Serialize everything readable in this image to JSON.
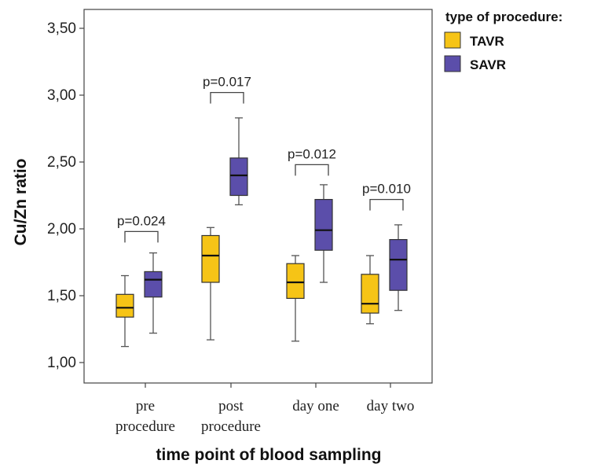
{
  "chart_data": {
    "type": "boxplot",
    "ylabel": "Cu/Zn ratio",
    "xlabel": "time point of blood sampling",
    "ylim": [
      0.9,
      3.65
    ],
    "yticks": [
      "1,00",
      "1,50",
      "2,00",
      "2,50",
      "3,00",
      "3,50"
    ],
    "ytick_values": [
      1.0,
      1.5,
      2.0,
      2.5,
      3.0,
      3.5
    ],
    "categories": [
      [
        "pre",
        "procedure"
      ],
      [
        "post",
        "procedure"
      ],
      [
        "day one"
      ],
      [
        "day two"
      ]
    ],
    "legend": {
      "title": "type of procedure:",
      "position": "top-right"
    },
    "series": [
      {
        "name": "TAVR",
        "color": "#f6c416",
        "boxes": [
          {
            "min": 1.12,
            "q1": 1.34,
            "median": 1.41,
            "q3": 1.51,
            "max": 1.65
          },
          {
            "min": 1.17,
            "q1": 1.6,
            "median": 1.8,
            "q3": 1.95,
            "max": 2.01
          },
          {
            "min": 1.16,
            "q1": 1.48,
            "median": 1.6,
            "q3": 1.74,
            "max": 1.8
          },
          {
            "min": 1.29,
            "q1": 1.37,
            "median": 1.44,
            "q3": 1.66,
            "max": 1.8
          }
        ]
      },
      {
        "name": "SAVR",
        "color": "#5b4eaa",
        "boxes": [
          {
            "min": 1.22,
            "q1": 1.49,
            "median": 1.62,
            "q3": 1.68,
            "max": 1.82
          },
          {
            "min": 2.18,
            "q1": 2.25,
            "median": 2.4,
            "q3": 2.53,
            "max": 2.83
          },
          {
            "min": 1.6,
            "q1": 1.84,
            "median": 1.99,
            "q3": 2.22,
            "max": 2.33
          },
          {
            "min": 1.39,
            "q1": 1.54,
            "median": 1.77,
            "q3": 1.92,
            "max": 2.03
          }
        ]
      }
    ],
    "annotations": [
      {
        "text": "p=0.024",
        "level": 1.98
      },
      {
        "text": "p=0.017",
        "level": 3.02
      },
      {
        "text": "p=0.012",
        "level": 2.48
      },
      {
        "text": "p=0.010",
        "level": 2.22
      }
    ]
  }
}
